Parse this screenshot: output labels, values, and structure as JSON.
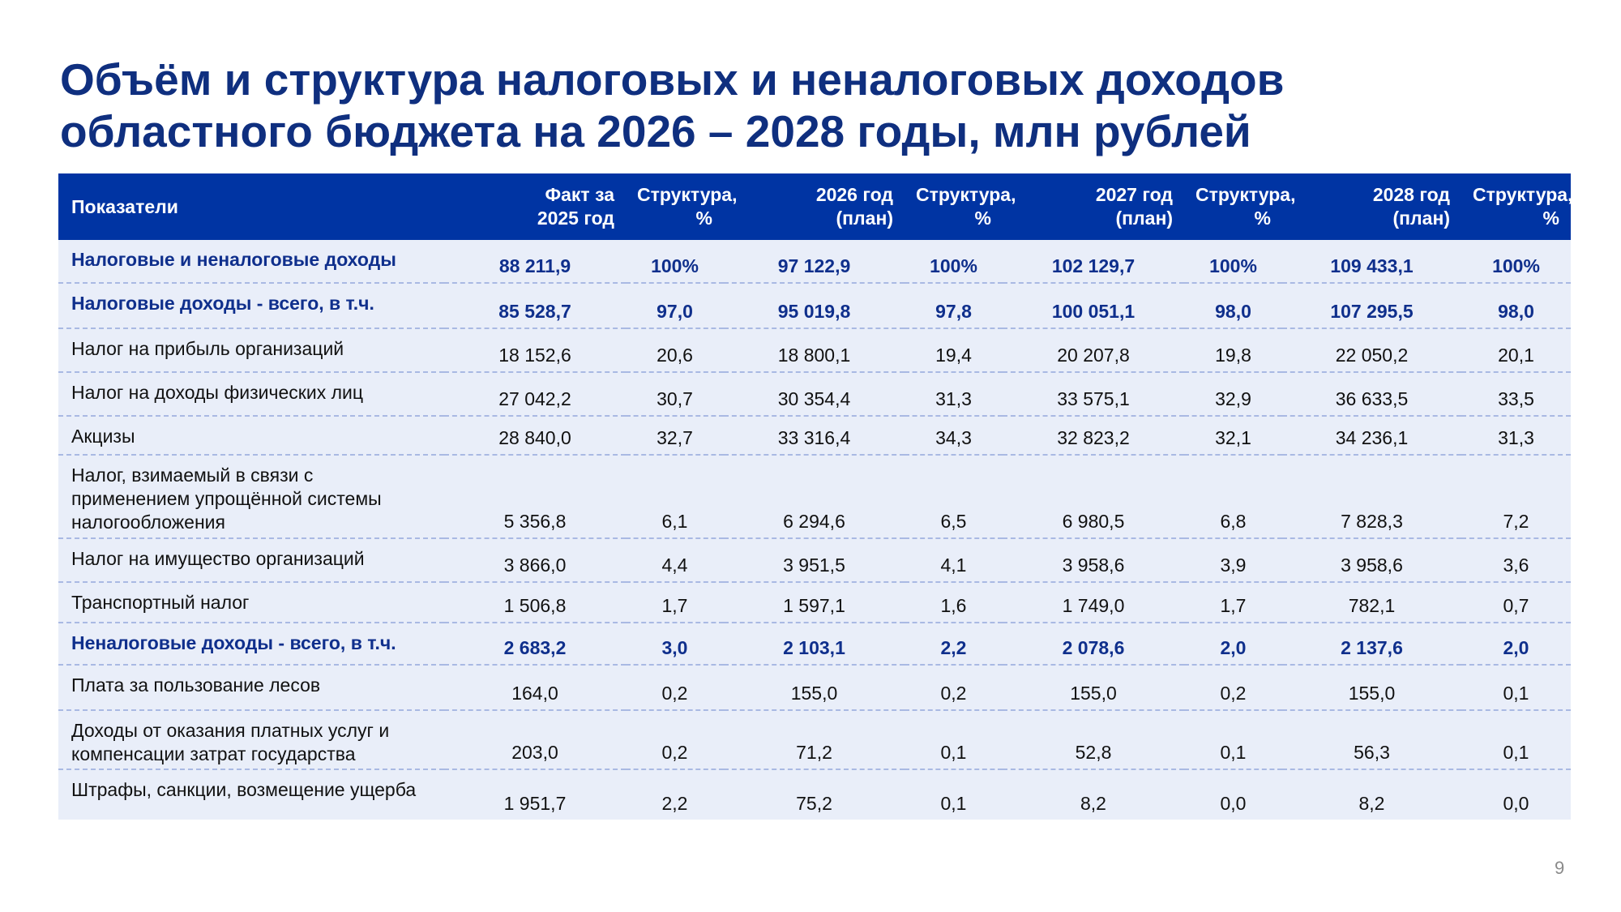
{
  "title": {
    "line1": "Объём и структура налоговых и неналоговых доходов",
    "line2": "областного бюджета на 2026 – 2028 годы, млн рублей"
  },
  "table": {
    "headers": {
      "name": "Показатели",
      "c1": [
        "Факт за",
        "2025 год"
      ],
      "c2": [
        "Структура,",
        "%"
      ],
      "c3": [
        "2026 год",
        "(план)"
      ],
      "c4": [
        "Структура,",
        "%"
      ],
      "c5": [
        "2027 год",
        "(план)"
      ],
      "c6": [
        "Структура,",
        "%"
      ],
      "c7": [
        "2028 год",
        "(план)"
      ],
      "c8": [
        "Структура,",
        "%"
      ]
    },
    "rows": [
      {
        "name": "Налоговые и неналоговые доходы",
        "v": [
          "88 211,9",
          "100%",
          "97 122,9",
          "100%",
          "102 129,7",
          "100%",
          "109 433,1",
          "100%"
        ]
      },
      {
        "name": "Налоговые доходы  - всего, в т.ч.",
        "v": [
          "85 528,7",
          "97,0",
          "95 019,8",
          "97,8",
          "100 051,1",
          "98,0",
          "107 295,5",
          "98,0"
        ]
      },
      {
        "name": "Налог на прибыль организаций",
        "v": [
          "18 152,6",
          "20,6",
          "18 800,1",
          "19,4",
          "20 207,8",
          "19,8",
          "22 050,2",
          "20,1"
        ]
      },
      {
        "name": "Налог на доходы физических лиц",
        "v": [
          "27 042,2",
          "30,7",
          "30 354,4",
          "31,3",
          "33 575,1",
          "32,9",
          "36 633,5",
          "33,5"
        ]
      },
      {
        "name": "Акцизы",
        "v": [
          "28 840,0",
          "32,7",
          "33 316,4",
          "34,3",
          "32 823,2",
          "32,1",
          "34 236,1",
          "31,3"
        ]
      },
      {
        "name": "Налог, взимаемый в связи с применением упрощённой системы налогообложения",
        "v": [
          "5 356,8",
          "6,1",
          "6 294,6",
          "6,5",
          "6 980,5",
          "6,8",
          "7 828,3",
          "7,2"
        ]
      },
      {
        "name": "Налог на имущество организаций",
        "v": [
          "3 866,0",
          "4,4",
          "3 951,5",
          "4,1",
          "3 958,6",
          "3,9",
          "3 958,6",
          "3,6"
        ]
      },
      {
        "name": "Транспортный налог",
        "v": [
          "1 506,8",
          "1,7",
          "1 597,1",
          "1,6",
          "1 749,0",
          "1,7",
          "782,1",
          "0,7"
        ]
      },
      {
        "name": "Неналоговые доходы - всего, в т.ч.",
        "v": [
          "2 683,2",
          "3,0",
          "2 103,1",
          "2,2",
          "2 078,6",
          "2,0",
          "2 137,6",
          "2,0"
        ]
      },
      {
        "name": "Плата за пользование лесов",
        "v": [
          "164,0",
          "0,2",
          "155,0",
          "0,2",
          "155,0",
          "0,2",
          "155,0",
          "0,1"
        ]
      },
      {
        "name": "Доходы от оказания платных услуг и компенсации затрат государства",
        "v": [
          "203,0",
          "0,2",
          "71,2",
          "0,1",
          "52,8",
          "0,1",
          "56,3",
          "0,1"
        ]
      },
      {
        "name": "Штрафы, санкции, возмещение ущерба",
        "v": [
          "1 951,7",
          "2,2",
          "75,2",
          "0,1",
          "8,2",
          "0,0",
          "8,2",
          "0,0"
        ]
      }
    ]
  },
  "page_number": "9",
  "colors": {
    "title": "#0f2f7f",
    "header_bg": "#0034a3",
    "row_bg": "#e9eef9",
    "bold_row_text": "#0f2f8c",
    "row_divider": "#a9b9e3"
  }
}
